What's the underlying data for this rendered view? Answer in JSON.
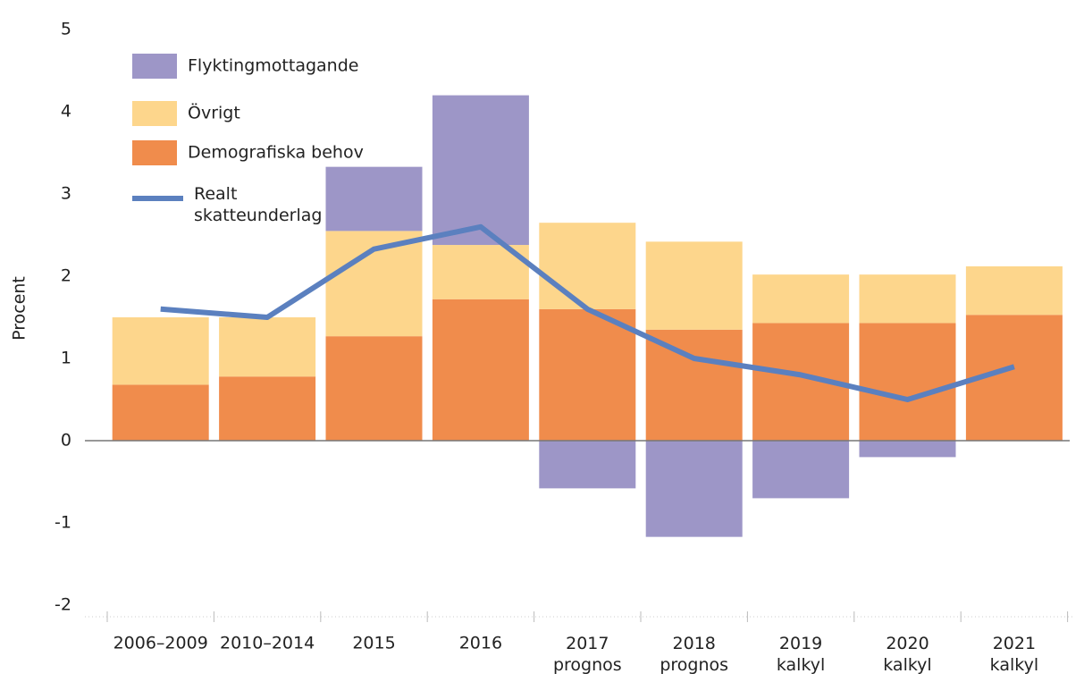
{
  "chart_data": {
    "type": "bar",
    "stacked": true,
    "y_label": "Procent",
    "categories": [
      "2006–2009",
      "2010–2014",
      "2015",
      "2016",
      "2017\nprognos",
      "2018\nprognos",
      "2019\nkalkyl",
      "2020\nkalkyl",
      "2021\nkalkyl"
    ],
    "series": [
      {
        "name": "Demografiska behov",
        "color": "#f08c4c",
        "values": [
          0.68,
          0.78,
          1.27,
          1.72,
          1.6,
          1.35,
          1.43,
          1.43,
          1.53
        ]
      },
      {
        "name": "Övrigt",
        "color": "#fdd68c",
        "values": [
          0.82,
          0.72,
          1.28,
          0.66,
          1.05,
          1.07,
          0.59,
          0.59,
          0.59
        ]
      },
      {
        "name": "Flyktingmottagande",
        "color": "#9d96c7",
        "values": [
          0,
          0,
          0.78,
          1.82,
          -0.58,
          -1.17,
          -0.7,
          -0.2,
          0
        ]
      },
      {
        "name": "Realt\nskatteunderlag",
        "color": "#5b80bf",
        "type": "line",
        "values": [
          1.6,
          1.5,
          2.33,
          2.6,
          1.6,
          1.0,
          0.8,
          0.5,
          0.9
        ]
      }
    ],
    "ylim": [
      -2.2,
      5.2
    ],
    "yticks": [
      -2,
      -1,
      0,
      1,
      2,
      3,
      4,
      5
    ]
  }
}
